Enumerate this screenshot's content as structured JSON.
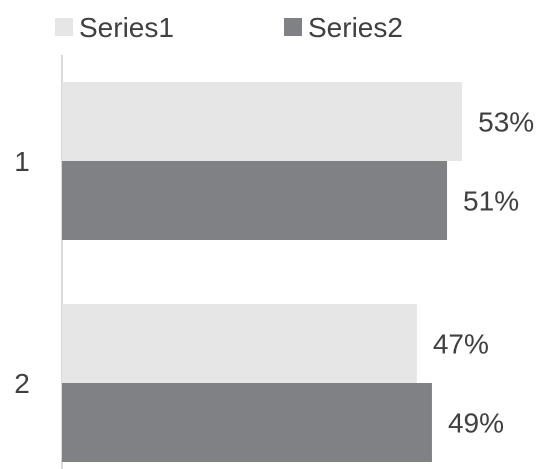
{
  "chart_data": {
    "type": "bar",
    "orientation": "horizontal",
    "categories": [
      "1",
      "2"
    ],
    "series": [
      {
        "name": "Series1",
        "values": [
          53,
          47
        ],
        "labels": [
          "53%",
          "47%"
        ],
        "color": "#e6e6e6"
      },
      {
        "name": "Series2",
        "values": [
          51,
          49
        ],
        "labels": [
          "51%",
          "49%"
        ],
        "color": "#808184"
      }
    ],
    "value_unit": "%",
    "xlim": [
      0,
      55
    ],
    "legend_position": "top-left",
    "grid": false,
    "title": "",
    "xlabel": "",
    "ylabel": "",
    "colors": {
      "text": "#404040",
      "axis": "#d9d9d9"
    }
  }
}
